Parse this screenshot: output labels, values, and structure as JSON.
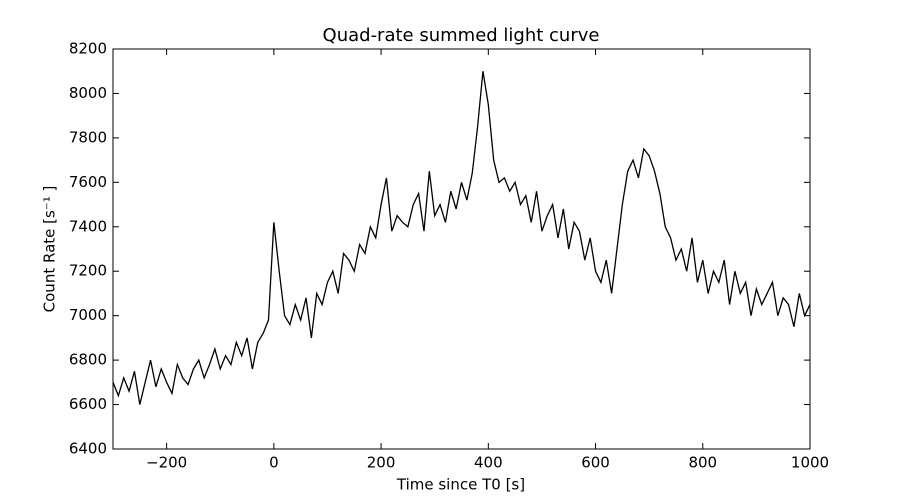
{
  "chart_data": {
    "type": "line",
    "title": "Quad-rate summed light curve",
    "xlabel": "Time since T0 [s]",
    "ylabel": "Count Rate [s⁻¹ ]",
    "xlim": [
      -300,
      1000
    ],
    "ylim": [
      6400,
      8200
    ],
    "xticks": [
      {
        "value": -200,
        "label": "−200"
      },
      0,
      200,
      400,
      600,
      800,
      1000
    ],
    "yticks": [
      6400,
      6600,
      6800,
      7000,
      7200,
      7400,
      7600,
      7800,
      8000,
      8200
    ],
    "x": [
      -300,
      -290,
      -280,
      -270,
      -260,
      -250,
      -240,
      -230,
      -220,
      -210,
      -200,
      -190,
      -180,
      -170,
      -160,
      -150,
      -140,
      -130,
      -120,
      -110,
      -100,
      -90,
      -80,
      -70,
      -60,
      -50,
      -40,
      -30,
      -20,
      -10,
      0,
      10,
      20,
      30,
      40,
      50,
      60,
      70,
      80,
      90,
      100,
      110,
      120,
      130,
      140,
      150,
      160,
      170,
      180,
      190,
      200,
      210,
      220,
      230,
      240,
      250,
      260,
      270,
      280,
      290,
      300,
      310,
      320,
      330,
      340,
      350,
      360,
      370,
      380,
      390,
      400,
      410,
      420,
      430,
      440,
      450,
      460,
      470,
      480,
      490,
      500,
      510,
      520,
      530,
      540,
      550,
      560,
      570,
      580,
      590,
      600,
      610,
      620,
      630,
      640,
      650,
      660,
      670,
      680,
      690,
      700,
      710,
      720,
      730,
      740,
      750,
      760,
      770,
      780,
      790,
      800,
      810,
      820,
      830,
      840,
      850,
      860,
      870,
      880,
      890,
      900,
      910,
      920,
      930,
      940,
      950,
      960,
      970,
      980,
      990,
      1000
    ],
    "series": [
      {
        "color": "#000000",
        "values": [
          6700,
          6640,
          6720,
          6660,
          6750,
          6600,
          6700,
          6800,
          6680,
          6760,
          6700,
          6650,
          6780,
          6720,
          6690,
          6760,
          6800,
          6720,
          6780,
          6850,
          6760,
          6820,
          6780,
          6880,
          6820,
          6900,
          6760,
          6880,
          6920,
          6980,
          7420,
          7200,
          7000,
          6960,
          7050,
          6980,
          7080,
          6900,
          7100,
          7050,
          7150,
          7200,
          7100,
          7280,
          7250,
          7200,
          7320,
          7280,
          7400,
          7350,
          7500,
          7620,
          7380,
          7450,
          7420,
          7400,
          7500,
          7550,
          7380,
          7650,
          7450,
          7500,
          7420,
          7560,
          7480,
          7600,
          7520,
          7640,
          7850,
          8100,
          7950,
          7700,
          7600,
          7620,
          7560,
          7600,
          7500,
          7540,
          7420,
          7560,
          7380,
          7450,
          7500,
          7350,
          7480,
          7300,
          7420,
          7380,
          7250,
          7350,
          7200,
          7150,
          7250,
          7100,
          7300,
          7500,
          7650,
          7700,
          7620,
          7750,
          7720,
          7650,
          7550,
          7400,
          7350,
          7250,
          7300,
          7200,
          7350,
          7150,
          7250,
          7100,
          7200,
          7150,
          7250,
          7050,
          7200,
          7100,
          7150,
          7000,
          7120,
          7050,
          7100,
          7150,
          7000,
          7080,
          7050,
          6950,
          7100,
          7000,
          7050
        ]
      }
    ]
  }
}
